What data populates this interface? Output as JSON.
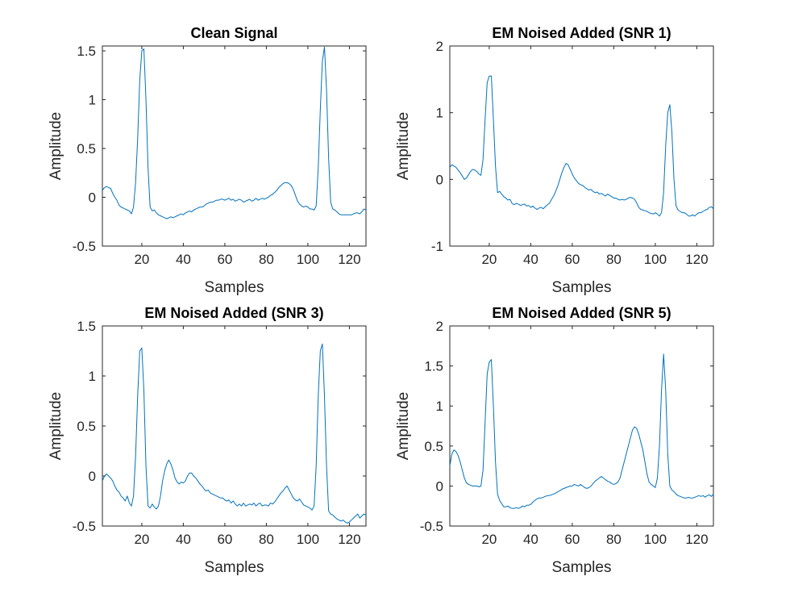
{
  "chart_data": [
    {
      "type": "line",
      "title": "Clean Signal",
      "xlabel": "Samples",
      "ylabel": "Amplitude",
      "xlim": [
        1,
        128
      ],
      "ylim": [
        -0.5,
        1.55
      ],
      "xticks": [
        20,
        40,
        60,
        80,
        100,
        120
      ],
      "yticks": [
        -0.5,
        0,
        0.5,
        1,
        1.5
      ],
      "ytick_labels": [
        "-0.5",
        "0",
        "0.5",
        "1",
        "1.5"
      ],
      "grid": false,
      "color": "#0072BD",
      "series": [
        {
          "values": [
            0.07,
            0.1,
            0.11,
            0.1,
            0.09,
            0.04,
            0.0,
            -0.03,
            -0.08,
            -0.1,
            -0.11,
            -0.12,
            -0.13,
            -0.14,
            -0.17,
            -0.1,
            0.15,
            0.6,
            1.2,
            1.5,
            1.52,
            1.0,
            0.3,
            -0.1,
            -0.14,
            -0.13,
            -0.16,
            -0.18,
            -0.19,
            -0.2,
            -0.21,
            -0.22,
            -0.21,
            -0.2,
            -0.21,
            -0.2,
            -0.19,
            -0.18,
            -0.17,
            -0.18,
            -0.16,
            -0.15,
            -0.14,
            -0.15,
            -0.13,
            -0.12,
            -0.11,
            -0.1,
            -0.1,
            -0.09,
            -0.07,
            -0.06,
            -0.05,
            -0.05,
            -0.04,
            -0.03,
            -0.03,
            -0.02,
            -0.02,
            -0.03,
            -0.02,
            -0.01,
            -0.03,
            -0.02,
            -0.04,
            -0.03,
            -0.02,
            -0.03,
            -0.05,
            -0.04,
            -0.03,
            -0.02,
            -0.04,
            -0.03,
            -0.01,
            -0.03,
            -0.02,
            -0.01,
            -0.02,
            -0.01,
            0.0,
            0.02,
            0.03,
            0.05,
            0.07,
            0.1,
            0.12,
            0.14,
            0.15,
            0.15,
            0.14,
            0.12,
            0.08,
            0.02,
            -0.04,
            -0.07,
            -0.09,
            -0.1,
            -0.09,
            -0.1,
            -0.12,
            -0.12,
            -0.13,
            -0.09,
            0.3,
            0.9,
            1.4,
            1.54,
            1.1,
            0.4,
            -0.05,
            -0.12,
            -0.13,
            -0.15,
            -0.17,
            -0.18,
            -0.18,
            -0.18,
            -0.18,
            -0.18,
            -0.18,
            -0.17,
            -0.16,
            -0.16,
            -0.17,
            -0.15,
            -0.12,
            -0.13
          ]
        }
      ]
    },
    {
      "type": "line",
      "title": "EM Noised Added (SNR 1)",
      "xlabel": "Samples",
      "ylabel": "Amplitude",
      "xlim": [
        1,
        128
      ],
      "ylim": [
        -1,
        2
      ],
      "xticks": [
        20,
        40,
        60,
        80,
        100,
        120
      ],
      "yticks": [
        -1,
        0,
        1,
        2
      ],
      "ytick_labels": [
        "-1",
        "0",
        "1",
        "2"
      ],
      "grid": false,
      "color": "#0072BD",
      "series": [
        {
          "values": [
            0.18,
            0.22,
            0.2,
            0.18,
            0.14,
            0.1,
            0.05,
            0.0,
            0.02,
            0.07,
            0.12,
            0.15,
            0.14,
            0.12,
            0.08,
            0.06,
            0.3,
            0.9,
            1.45,
            1.55,
            1.55,
            0.9,
            0.2,
            -0.2,
            -0.18,
            -0.22,
            -0.26,
            -0.28,
            -0.31,
            -0.3,
            -0.36,
            -0.38,
            -0.36,
            -0.37,
            -0.39,
            -0.38,
            -0.37,
            -0.4,
            -0.39,
            -0.42,
            -0.4,
            -0.43,
            -0.45,
            -0.43,
            -0.42,
            -0.44,
            -0.41,
            -0.38,
            -0.36,
            -0.3,
            -0.25,
            -0.18,
            -0.1,
            0.0,
            0.1,
            0.18,
            0.24,
            0.22,
            0.15,
            0.08,
            0.02,
            -0.02,
            -0.06,
            -0.08,
            -0.09,
            -0.12,
            -0.14,
            -0.16,
            -0.15,
            -0.18,
            -0.2,
            -0.19,
            -0.22,
            -0.21,
            -0.23,
            -0.25,
            -0.22,
            -0.24,
            -0.26,
            -0.28,
            -0.28,
            -0.3,
            -0.31,
            -0.3,
            -0.31,
            -0.3,
            -0.28,
            -0.27,
            -0.28,
            -0.3,
            -0.35,
            -0.42,
            -0.45,
            -0.46,
            -0.47,
            -0.48,
            -0.5,
            -0.51,
            -0.52,
            -0.5,
            -0.52,
            -0.55,
            -0.5,
            -0.2,
            0.5,
            1.0,
            1.12,
            0.7,
            0.0,
            -0.4,
            -0.46,
            -0.48,
            -0.5,
            -0.5,
            -0.52,
            -0.55,
            -0.55,
            -0.53,
            -0.55,
            -0.52,
            -0.5,
            -0.5,
            -0.48,
            -0.46,
            -0.45,
            -0.42,
            -0.41,
            -0.44
          ]
        }
      ]
    },
    {
      "type": "line",
      "title": "EM Noised Added (SNR 3)",
      "xlabel": "Samples",
      "ylabel": "Amplitude",
      "xlim": [
        1,
        128
      ],
      "ylim": [
        -0.5,
        1.5
      ],
      "xticks": [
        20,
        40,
        60,
        80,
        100,
        120
      ],
      "yticks": [
        -0.5,
        0,
        0.5,
        1,
        1.5
      ],
      "ytick_labels": [
        "-0.5",
        "0",
        "0.5",
        "1",
        "1.5"
      ],
      "grid": false,
      "color": "#0072BD",
      "series": [
        {
          "values": [
            -0.05,
            0.0,
            0.02,
            0.0,
            -0.02,
            -0.05,
            -0.1,
            -0.14,
            -0.16,
            -0.2,
            -0.22,
            -0.25,
            -0.2,
            -0.27,
            -0.3,
            -0.2,
            0.2,
            0.8,
            1.25,
            1.28,
            0.85,
            0.1,
            -0.3,
            -0.32,
            -0.28,
            -0.31,
            -0.33,
            -0.3,
            -0.2,
            -0.05,
            0.05,
            0.12,
            0.16,
            0.12,
            0.06,
            -0.02,
            -0.06,
            -0.08,
            -0.06,
            -0.07,
            -0.05,
            0.0,
            0.03,
            0.03,
            0.0,
            -0.02,
            -0.05,
            -0.08,
            -0.1,
            -0.13,
            -0.15,
            -0.14,
            -0.17,
            -0.18,
            -0.19,
            -0.2,
            -0.21,
            -0.22,
            -0.22,
            -0.24,
            -0.25,
            -0.24,
            -0.27,
            -0.25,
            -0.28,
            -0.3,
            -0.28,
            -0.3,
            -0.27,
            -0.3,
            -0.29,
            -0.28,
            -0.29,
            -0.27,
            -0.3,
            -0.28,
            -0.27,
            -0.3,
            -0.29,
            -0.29,
            -0.3,
            -0.27,
            -0.28,
            -0.26,
            -0.23,
            -0.2,
            -0.17,
            -0.15,
            -0.12,
            -0.1,
            -0.14,
            -0.18,
            -0.22,
            -0.24,
            -0.25,
            -0.23,
            -0.26,
            -0.29,
            -0.3,
            -0.31,
            -0.32,
            -0.34,
            -0.3,
            0.1,
            0.8,
            1.25,
            1.32,
            0.8,
            0.1,
            -0.35,
            -0.38,
            -0.39,
            -0.41,
            -0.43,
            -0.44,
            -0.45,
            -0.44,
            -0.46,
            -0.47,
            -0.46,
            -0.44,
            -0.42,
            -0.4,
            -0.38,
            -0.42,
            -0.4,
            -0.38,
            -0.39
          ]
        }
      ]
    },
    {
      "type": "line",
      "title": "EM Noised Added (SNR 5)",
      "xlabel": "Samples",
      "ylabel": "Amplitude",
      "xlim": [
        1,
        128
      ],
      "ylim": [
        -0.5,
        2
      ],
      "xticks": [
        20,
        40,
        60,
        80,
        100,
        120
      ],
      "yticks": [
        -0.5,
        0,
        0.5,
        1,
        1.5,
        2
      ],
      "ytick_labels": [
        "-0.5",
        "0",
        "0.5",
        "1",
        "1.5",
        "2"
      ],
      "grid": false,
      "color": "#0072BD",
      "series": [
        {
          "values": [
            0.25,
            0.4,
            0.45,
            0.43,
            0.38,
            0.3,
            0.2,
            0.1,
            0.04,
            0.02,
            0.01,
            0.0,
            0.0,
            0.0,
            -0.01,
            0.0,
            0.2,
            0.8,
            1.4,
            1.55,
            1.58,
            1.0,
            0.3,
            -0.1,
            -0.18,
            -0.22,
            -0.26,
            -0.26,
            -0.25,
            -0.27,
            -0.28,
            -0.28,
            -0.27,
            -0.28,
            -0.27,
            -0.25,
            -0.26,
            -0.24,
            -0.24,
            -0.23,
            -0.2,
            -0.18,
            -0.16,
            -0.15,
            -0.15,
            -0.14,
            -0.13,
            -0.12,
            -0.12,
            -0.11,
            -0.1,
            -0.09,
            -0.07,
            -0.06,
            -0.04,
            -0.03,
            -0.02,
            -0.01,
            0.0,
            0.0,
            0.02,
            0.01,
            0.0,
            0.02,
            0.0,
            -0.02,
            -0.03,
            -0.02,
            0.0,
            0.03,
            0.06,
            0.08,
            0.1,
            0.12,
            0.1,
            0.08,
            0.06,
            0.05,
            0.03,
            0.02,
            0.03,
            0.05,
            0.1,
            0.2,
            0.3,
            0.4,
            0.5,
            0.6,
            0.7,
            0.74,
            0.72,
            0.65,
            0.55,
            0.45,
            0.3,
            0.15,
            0.05,
            0.02,
            0.0,
            -0.02,
            0.1,
            0.5,
            1.2,
            1.65,
            1.2,
            0.4,
            0.0,
            -0.05,
            -0.07,
            -0.1,
            -0.12,
            -0.13,
            -0.14,
            -0.15,
            -0.15,
            -0.14,
            -0.15,
            -0.15,
            -0.14,
            -0.13,
            -0.12,
            -0.13,
            -0.12,
            -0.14,
            -0.12,
            -0.11,
            -0.13,
            -0.1
          ]
        }
      ]
    }
  ]
}
